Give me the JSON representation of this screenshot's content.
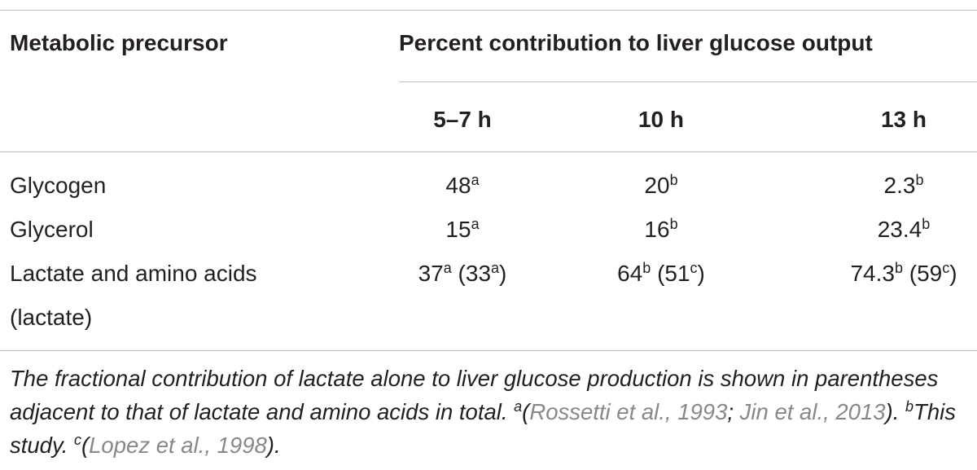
{
  "table": {
    "header": {
      "precursor": "Metabolic precursor",
      "group": "Percent contribution to liver glucose output",
      "columns": [
        "5–7 h",
        "10 h",
        "13 h"
      ]
    },
    "rows": [
      {
        "label": "Glycogen",
        "cells": [
          [
            {
              "text": "48"
            },
            {
              "sup": "a"
            }
          ],
          [
            {
              "text": "20"
            },
            {
              "sup": "b"
            }
          ],
          [
            {
              "text": "2.3"
            },
            {
              "sup": "b"
            }
          ]
        ]
      },
      {
        "label": "Glycerol",
        "cells": [
          [
            {
              "text": "15"
            },
            {
              "sup": "a"
            }
          ],
          [
            {
              "text": "16"
            },
            {
              "sup": "b"
            }
          ],
          [
            {
              "text": "23.4"
            },
            {
              "sup": "b"
            }
          ]
        ]
      },
      {
        "label": "Lactate and amino acids (lactate)",
        "cells": [
          [
            {
              "text": "37"
            },
            {
              "sup": "a"
            },
            {
              "text": " (33"
            },
            {
              "sup": "a"
            },
            {
              "text": ")"
            }
          ],
          [
            {
              "text": "64"
            },
            {
              "sup": "b"
            },
            {
              "text": " (51"
            },
            {
              "sup": "c"
            },
            {
              "text": ")"
            }
          ],
          [
            {
              "text": "74.3"
            },
            {
              "sup": "b"
            },
            {
              "text": " (59"
            },
            {
              "sup": "c"
            },
            {
              "text": ")"
            }
          ]
        ]
      }
    ]
  },
  "footnote": [
    {
      "text": "The fractional contribution of lactate alone to liver glucose production is shown in parentheses adjacent to that of lactate and amino acids in total. "
    },
    {
      "sup": "a"
    },
    {
      "text": "("
    },
    {
      "cite": "Rossetti et al., 1993"
    },
    {
      "text": "; "
    },
    {
      "cite": "Jin et al., 2013"
    },
    {
      "text": "). "
    },
    {
      "sup": "b"
    },
    {
      "text": "This study. "
    },
    {
      "sup": "c"
    },
    {
      "text": "("
    },
    {
      "cite": "Lopez et al., 1998"
    },
    {
      "text": ")."
    }
  ]
}
